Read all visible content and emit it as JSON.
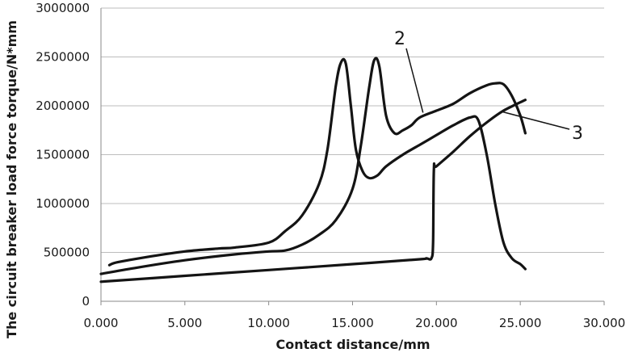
{
  "chart_data": {
    "type": "line",
    "title": "",
    "xlabel": "Contact distance/mm",
    "ylabel": "The circuit breaker load force torque/N*mm",
    "xlim": [
      0,
      30
    ],
    "ylim": [
      0,
      3000000
    ],
    "x_ticks": [
      0,
      5,
      10,
      15,
      20,
      25,
      30
    ],
    "x_tick_labels": [
      "0.000",
      "5.000",
      "10.000",
      "15.000",
      "20.000",
      "25.000",
      "30.000"
    ],
    "y_ticks": [
      0,
      500000,
      1000000,
      1500000,
      2000000,
      2500000,
      3000000
    ],
    "y_tick_labels": [
      "0",
      "500000",
      "1000000",
      "1500000",
      "2000000",
      "2500000",
      "3000000"
    ],
    "grid": {
      "horizontal": true,
      "vertical": false
    },
    "annotations": [
      {
        "text": "2",
        "target": {
          "x": 19.2,
          "y": 1930000
        }
      },
      {
        "text": "3",
        "target": {
          "x": 23.9,
          "y": 1940000
        }
      }
    ],
    "series": [
      {
        "x": [
          0.5,
          1,
          3,
          5,
          7,
          8,
          10,
          11,
          12,
          13,
          13.5,
          14,
          14.3,
          14.6,
          14.9,
          15.2,
          15.6,
          16,
          16.5,
          17,
          18,
          19,
          20,
          21,
          22,
          22.5,
          23,
          23.5,
          24,
          24.5,
          25,
          25.3
        ],
        "y": [
          370000,
          400000,
          460000,
          510000,
          540000,
          550000,
          600000,
          720000,
          880000,
          1200000,
          1550000,
          2200000,
          2440000,
          2430000,
          2000000,
          1550000,
          1330000,
          1260000,
          1290000,
          1380000,
          1500000,
          1600000,
          1700000,
          1800000,
          1880000,
          1850000,
          1500000,
          1000000,
          600000,
          440000,
          380000,
          330000
        ]
      },
      {
        "x": [
          0,
          2,
          5,
          8,
          10,
          11,
          12,
          13,
          14,
          15,
          15.5,
          16,
          16.3,
          16.6,
          17,
          17.5,
          18,
          18.5,
          19,
          20,
          21,
          22,
          23,
          23.5,
          24,
          24.5,
          25,
          25.3
        ],
        "y": [
          280000,
          340000,
          420000,
          480000,
          510000,
          520000,
          580000,
          680000,
          830000,
          1150000,
          1600000,
          2200000,
          2470000,
          2400000,
          1900000,
          1720000,
          1750000,
          1800000,
          1880000,
          1950000,
          2020000,
          2130000,
          2210000,
          2230000,
          2220000,
          2100000,
          1900000,
          1720000
        ]
      },
      {
        "x": [
          0,
          5,
          10,
          15,
          19,
          19.4,
          19.7,
          19.8,
          19.85,
          20,
          21,
          22,
          23,
          24,
          25.3
        ],
        "y": [
          200000,
          260000,
          320000,
          380000,
          430000,
          440000,
          440000,
          600000,
          1350000,
          1380000,
          1530000,
          1690000,
          1830000,
          1950000,
          2060000
        ]
      }
    ]
  }
}
